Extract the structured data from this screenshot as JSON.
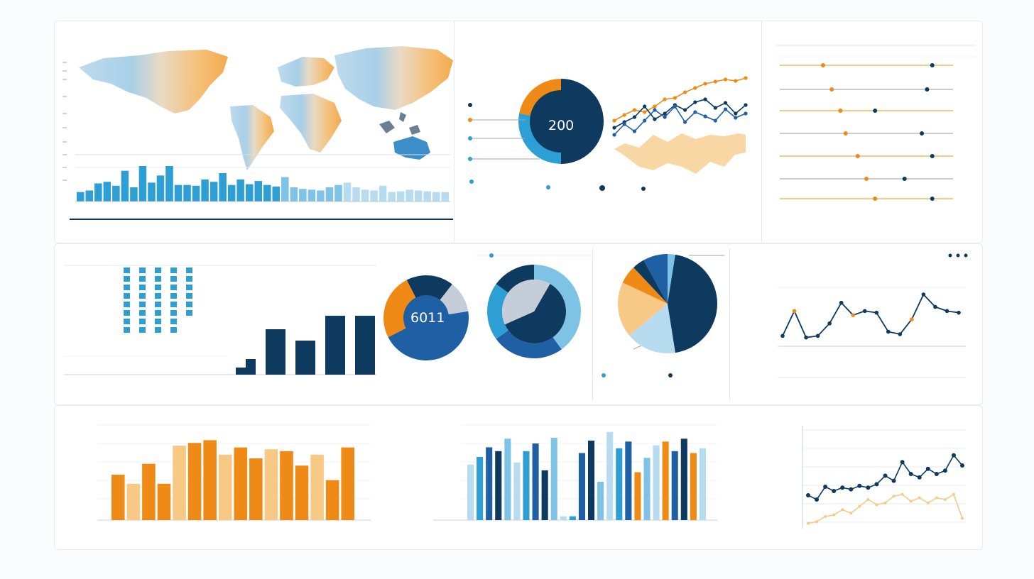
{
  "colors": {
    "navy": "#0d3a5e",
    "blue": "#1f5fa3",
    "mid_blue": "#2e9fd4",
    "light_blue": "#7ec3e6",
    "pale_blue": "#b8dcef",
    "orange": "#f08a16",
    "light_orange": "#f7c985",
    "gray": "#c5ced8",
    "grid": "#e3e8ee"
  },
  "top_donut": {
    "label": "200"
  },
  "mid_donut": {
    "label": "6011"
  },
  "chart_data": [
    {
      "id": "map-region-bars",
      "type": "bar",
      "values": [
        12,
        14,
        23,
        25,
        20,
        39,
        18,
        45,
        24,
        33,
        45,
        21,
        21,
        20,
        28,
        25,
        36,
        21,
        28,
        22,
        26,
        21,
        19,
        31,
        18,
        16,
        15,
        14,
        18,
        21,
        24,
        18,
        15,
        14,
        20,
        12,
        13,
        15,
        14,
        13,
        12,
        12
      ]
    },
    {
      "id": "top-donut",
      "type": "pie",
      "values": [
        50,
        28,
        22
      ],
      "labels": [
        "",
        "",
        ""
      ]
    },
    {
      "id": "top-line",
      "type": "line",
      "x": [
        1,
        2,
        3,
        4,
        5,
        6,
        7,
        8,
        9,
        10,
        11,
        12,
        13,
        14
      ],
      "series": [
        {
          "values": [
            40,
            48,
            55,
            52,
            60,
            70,
            72,
            80,
            86,
            92,
            95,
            98,
            96,
            100
          ]
        },
        {
          "values": [
            30,
            38,
            45,
            60,
            42,
            50,
            62,
            55,
            66,
            70,
            58,
            65,
            50,
            62
          ]
        },
        {
          "values": [
            20,
            35,
            25,
            40,
            55,
            45,
            60,
            38,
            52,
            46,
            40,
            56,
            44,
            50
          ]
        }
      ]
    },
    {
      "id": "mid-bar",
      "type": "bar",
      "values": [
        10,
        22,
        64,
        48,
        83,
        83
      ]
    },
    {
      "id": "mid-donut",
      "type": "pie",
      "values": [
        45,
        25,
        18,
        12
      ]
    },
    {
      "id": "ring-pie",
      "type": "pie",
      "values": [
        40,
        25,
        20,
        15
      ]
    },
    {
      "id": "mid-pie",
      "type": "pie",
      "values": [
        42,
        22,
        18,
        6,
        4,
        8
      ]
    },
    {
      "id": "mid-line",
      "type": "line",
      "x": [
        1,
        2,
        3,
        4,
        5,
        6,
        7,
        8,
        9,
        10,
        11,
        12,
        13,
        14,
        15,
        16
      ],
      "values": [
        10,
        40,
        8,
        10,
        25,
        50,
        35,
        40,
        38,
        15,
        12,
        30,
        60,
        45,
        40,
        38
      ]
    },
    {
      "id": "orange-bars",
      "type": "bar",
      "values": [
        50,
        40,
        62,
        40,
        82,
        85,
        88,
        72,
        80,
        68,
        78,
        76,
        60,
        72,
        44,
        80
      ]
    },
    {
      "id": "blue-bars",
      "type": "bar",
      "values": [
        58,
        66,
        76,
        72,
        85,
        60,
        72,
        80,
        52,
        86,
        4,
        4,
        70,
        83,
        40,
        92,
        75,
        82,
        50,
        65,
        78,
        82,
        72,
        85,
        70,
        75
      ]
    },
    {
      "id": "bottom-line",
      "type": "line",
      "x": [
        1,
        2,
        3,
        4,
        5,
        6,
        7,
        8,
        9,
        10,
        11,
        12,
        13,
        14,
        15,
        16,
        17,
        18,
        19
      ],
      "series": [
        {
          "values": [
            35,
            30,
            45,
            40,
            44,
            42,
            46,
            44,
            48,
            58,
            52,
            74,
            60,
            56,
            66,
            60,
            64,
            82,
            70
          ]
        },
        {
          "values": [
            2,
            4,
            10,
            12,
            18,
            14,
            22,
            30,
            24,
            26,
            34,
            36,
            28,
            32,
            26,
            32,
            30,
            36,
            8
          ]
        }
      ]
    }
  ]
}
